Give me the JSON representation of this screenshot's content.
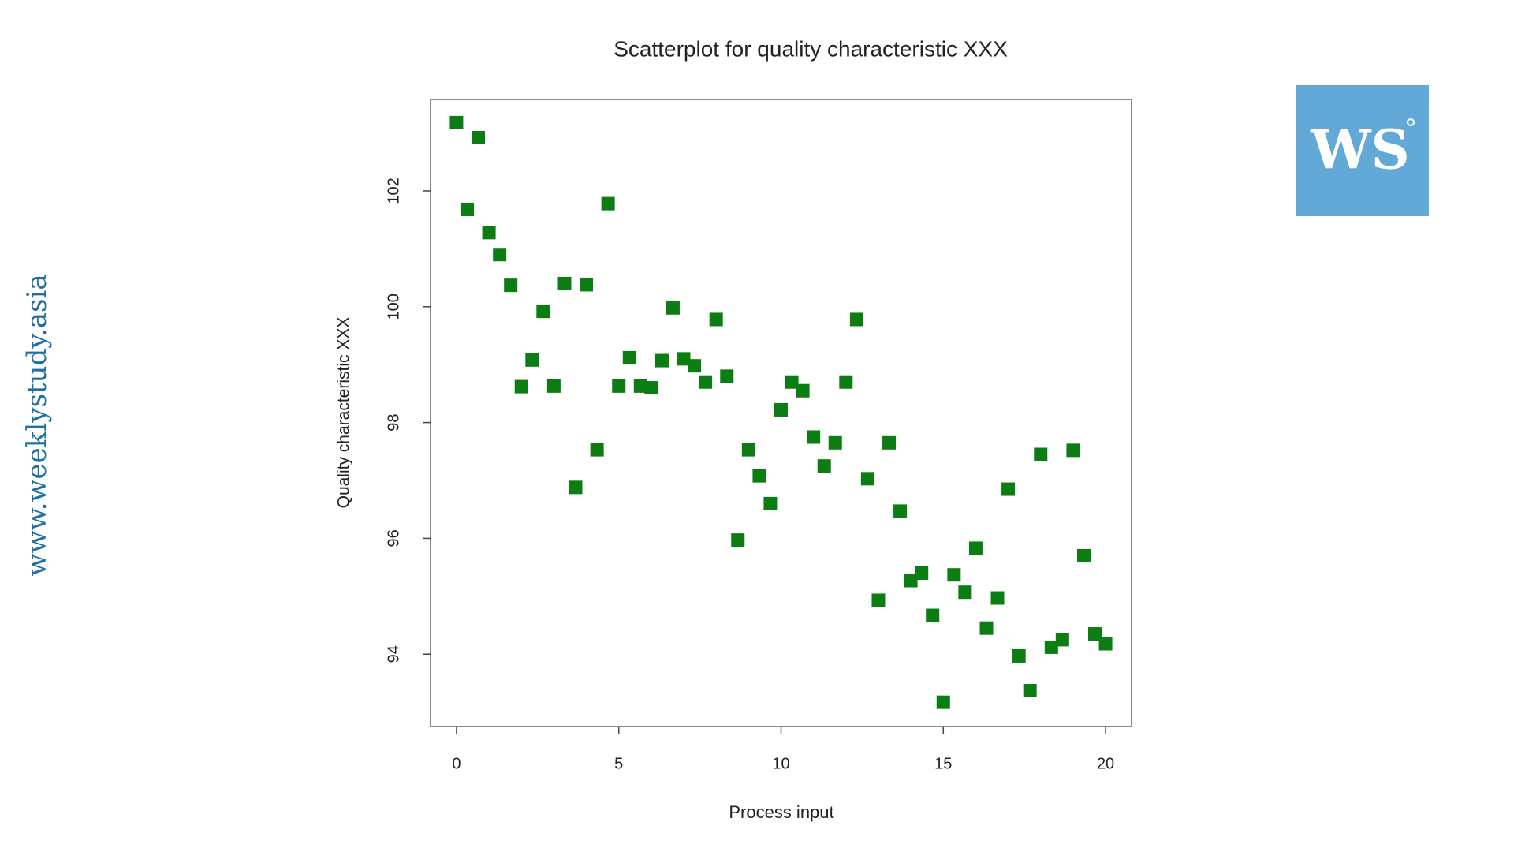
{
  "site": "www.weeklystudy.asia",
  "logo": "WS",
  "chart_data": {
    "type": "scatter",
    "title": "Scatterplot for quality characteristic XXX",
    "x_label": "Process input",
    "y_label": "Quality characteristic XXX",
    "color": "#0b7d12",
    "marker": "square",
    "xlim": [
      -0.8,
      20.8
    ],
    "ylim": [
      92.75,
      103.58
    ],
    "xticks": [
      0,
      5,
      10,
      15,
      20
    ],
    "yticks": [
      94,
      96,
      98,
      100,
      102
    ],
    "x": [
      0,
      0.33,
      0.67,
      1,
      1.33,
      1.67,
      2,
      2.33,
      2.67,
      3,
      3.33,
      3.67,
      4,
      4.33,
      4.67,
      5,
      5.33,
      5.67,
      6,
      6.33,
      6.67,
      7,
      7.33,
      7.67,
      8,
      8.33,
      8.67,
      9,
      9.33,
      9.67,
      10,
      10.33,
      10.67,
      11,
      11.33,
      11.67,
      12,
      12.33,
      12.67,
      13,
      13.33,
      13.67,
      14,
      14.33,
      14.67,
      15,
      15.33,
      15.67,
      16,
      16.33,
      16.67,
      17,
      17.33,
      17.67,
      18,
      18.33,
      18.67,
      19,
      19.33,
      19.67,
      20
    ],
    "y": [
      103.18,
      101.68,
      102.92,
      101.28,
      100.9,
      100.37,
      98.62,
      99.08,
      99.92,
      98.63,
      100.4,
      96.88,
      100.38,
      97.53,
      101.78,
      98.63,
      99.12,
      98.63,
      98.6,
      99.07,
      99.98,
      99.1,
      98.98,
      98.7,
      99.78,
      98.8,
      95.97,
      97.53,
      97.08,
      96.6,
      98.22,
      98.7,
      98.55,
      97.75,
      97.25,
      97.65,
      98.7,
      99.78,
      97.03,
      94.93,
      97.65,
      96.47,
      95.27,
      95.4,
      94.67,
      93.17,
      95.37,
      95.07,
      95.83,
      94.45,
      94.97,
      96.85,
      93.97,
      93.37,
      97.45,
      94.12,
      94.25,
      97.52,
      95.7,
      94.35,
      94.18
    ]
  }
}
